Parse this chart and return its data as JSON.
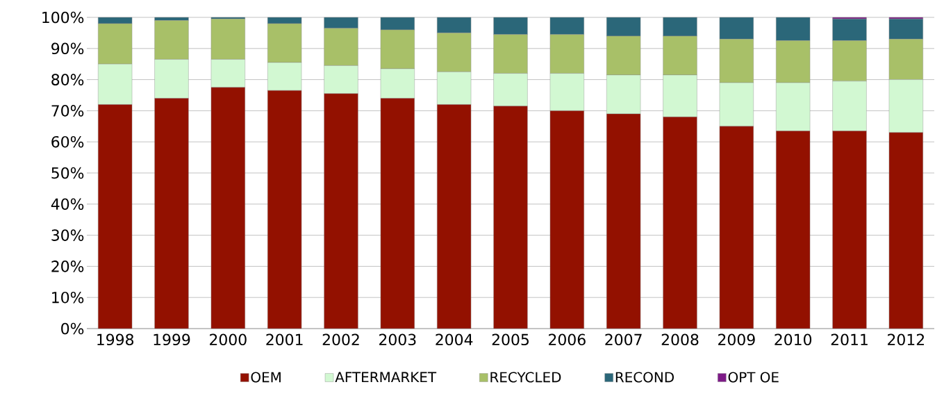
{
  "chart_data": {
    "type": "bar",
    "stacked": true,
    "categories": [
      "1998",
      "1999",
      "2000",
      "2001",
      "2002",
      "2003",
      "2004",
      "2005",
      "2006",
      "2007",
      "2008",
      "2009",
      "2010",
      "2011",
      "2012"
    ],
    "series": [
      {
        "name": "OEM",
        "color": "#931100",
        "values": [
          72,
          74,
          77.5,
          76.5,
          75.5,
          74,
          72,
          71.5,
          70,
          69,
          68,
          65,
          63.5,
          63.5,
          63
        ]
      },
      {
        "name": "AFTERMARKET",
        "color": "#d2f8d2",
        "values": [
          13,
          12.5,
          9,
          9,
          9,
          9.5,
          10.5,
          10.5,
          12,
          12.5,
          13.5,
          14,
          15.5,
          16,
          17
        ]
      },
      {
        "name": "RECYCLED",
        "color": "#a8c068",
        "values": [
          13,
          12.5,
          13,
          12.5,
          12,
          12.5,
          12.5,
          12.5,
          12.5,
          12.5,
          12.5,
          14,
          13.5,
          13,
          13
        ]
      },
      {
        "name": "RECOND",
        "color": "#2b6779",
        "values": [
          2,
          1,
          0.5,
          2,
          3.5,
          4,
          5,
          5.5,
          5.5,
          6,
          6,
          7,
          7.5,
          7,
          6.5
        ]
      },
      {
        "name": "OPT OE",
        "color": "#7d1a87",
        "values": [
          0,
          0,
          0,
          0,
          0,
          0,
          0,
          0,
          0,
          0,
          0,
          0,
          0,
          0.5,
          0.5
        ]
      }
    ],
    "ylim": [
      0,
      100
    ],
    "yticks": [
      {
        "value": 0,
        "label": "0%"
      },
      {
        "value": 10,
        "label": "10%"
      },
      {
        "value": 20,
        "label": "20%"
      },
      {
        "value": 30,
        "label": "30%"
      },
      {
        "value": 40,
        "label": "40%"
      },
      {
        "value": 50,
        "label": "50%"
      },
      {
        "value": 60,
        "label": "60%"
      },
      {
        "value": 70,
        "label": "70%"
      },
      {
        "value": 80,
        "label": "80%"
      },
      {
        "value": 90,
        "label": "90%"
      },
      {
        "value": 100,
        "label": "100%"
      }
    ],
    "grid": "y",
    "legend": "bottom"
  }
}
